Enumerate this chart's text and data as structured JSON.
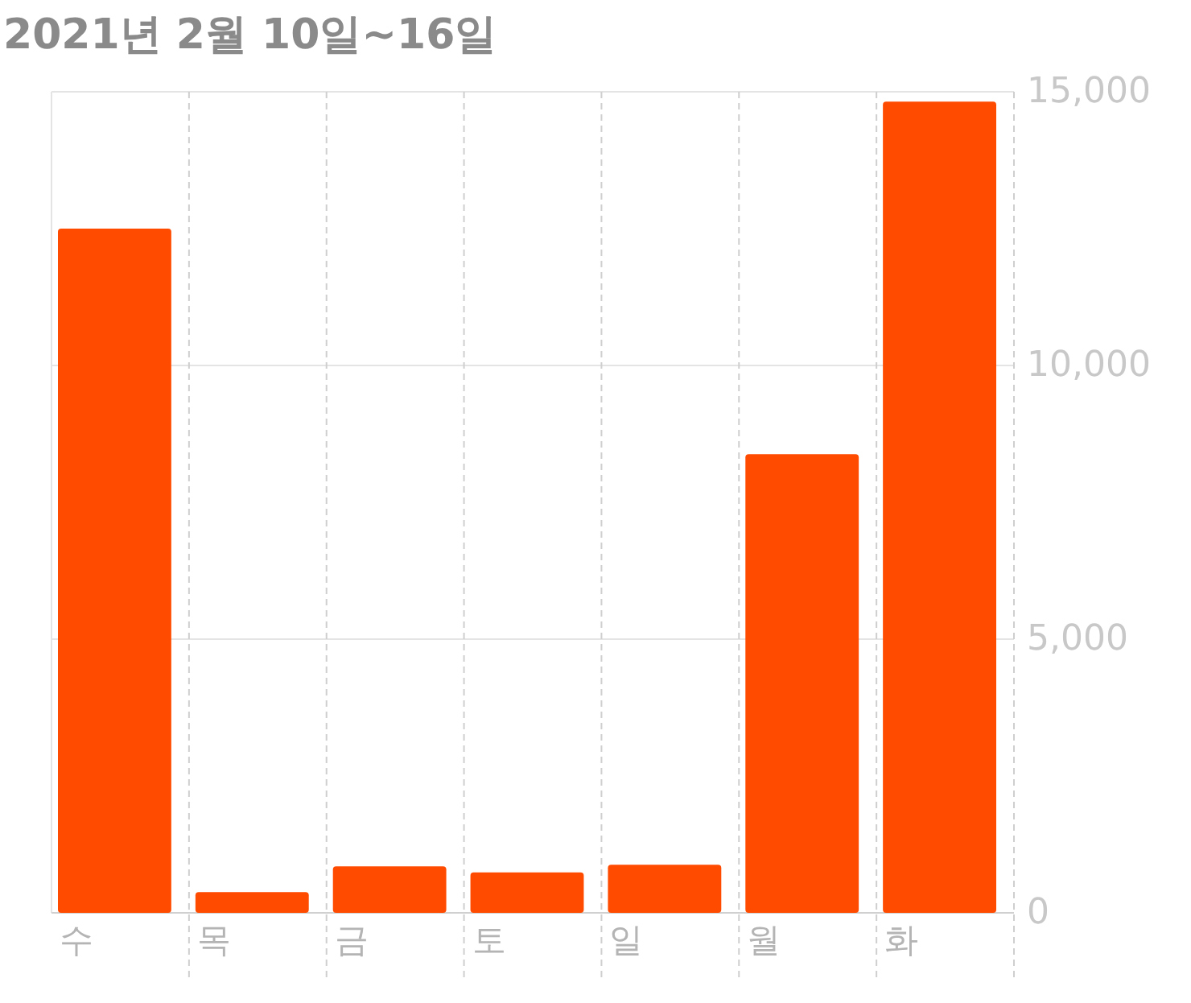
{
  "chart_data": {
    "type": "bar",
    "title": "2021년 2월 10일~16일",
    "categories": [
      "수",
      "목",
      "금",
      "토",
      "일",
      "월",
      "화"
    ],
    "values": [
      12500,
      380,
      850,
      740,
      880,
      8380,
      14820
    ],
    "color": "#ff4b00",
    "ylim": [
      0,
      15000
    ],
    "yticks": [
      {
        "value": 0,
        "label": "0"
      },
      {
        "value": 5000,
        "label": "5,000"
      },
      {
        "value": 10000,
        "label": "10,000"
      },
      {
        "value": 15000,
        "label": "15,000"
      }
    ],
    "grid": true
  }
}
